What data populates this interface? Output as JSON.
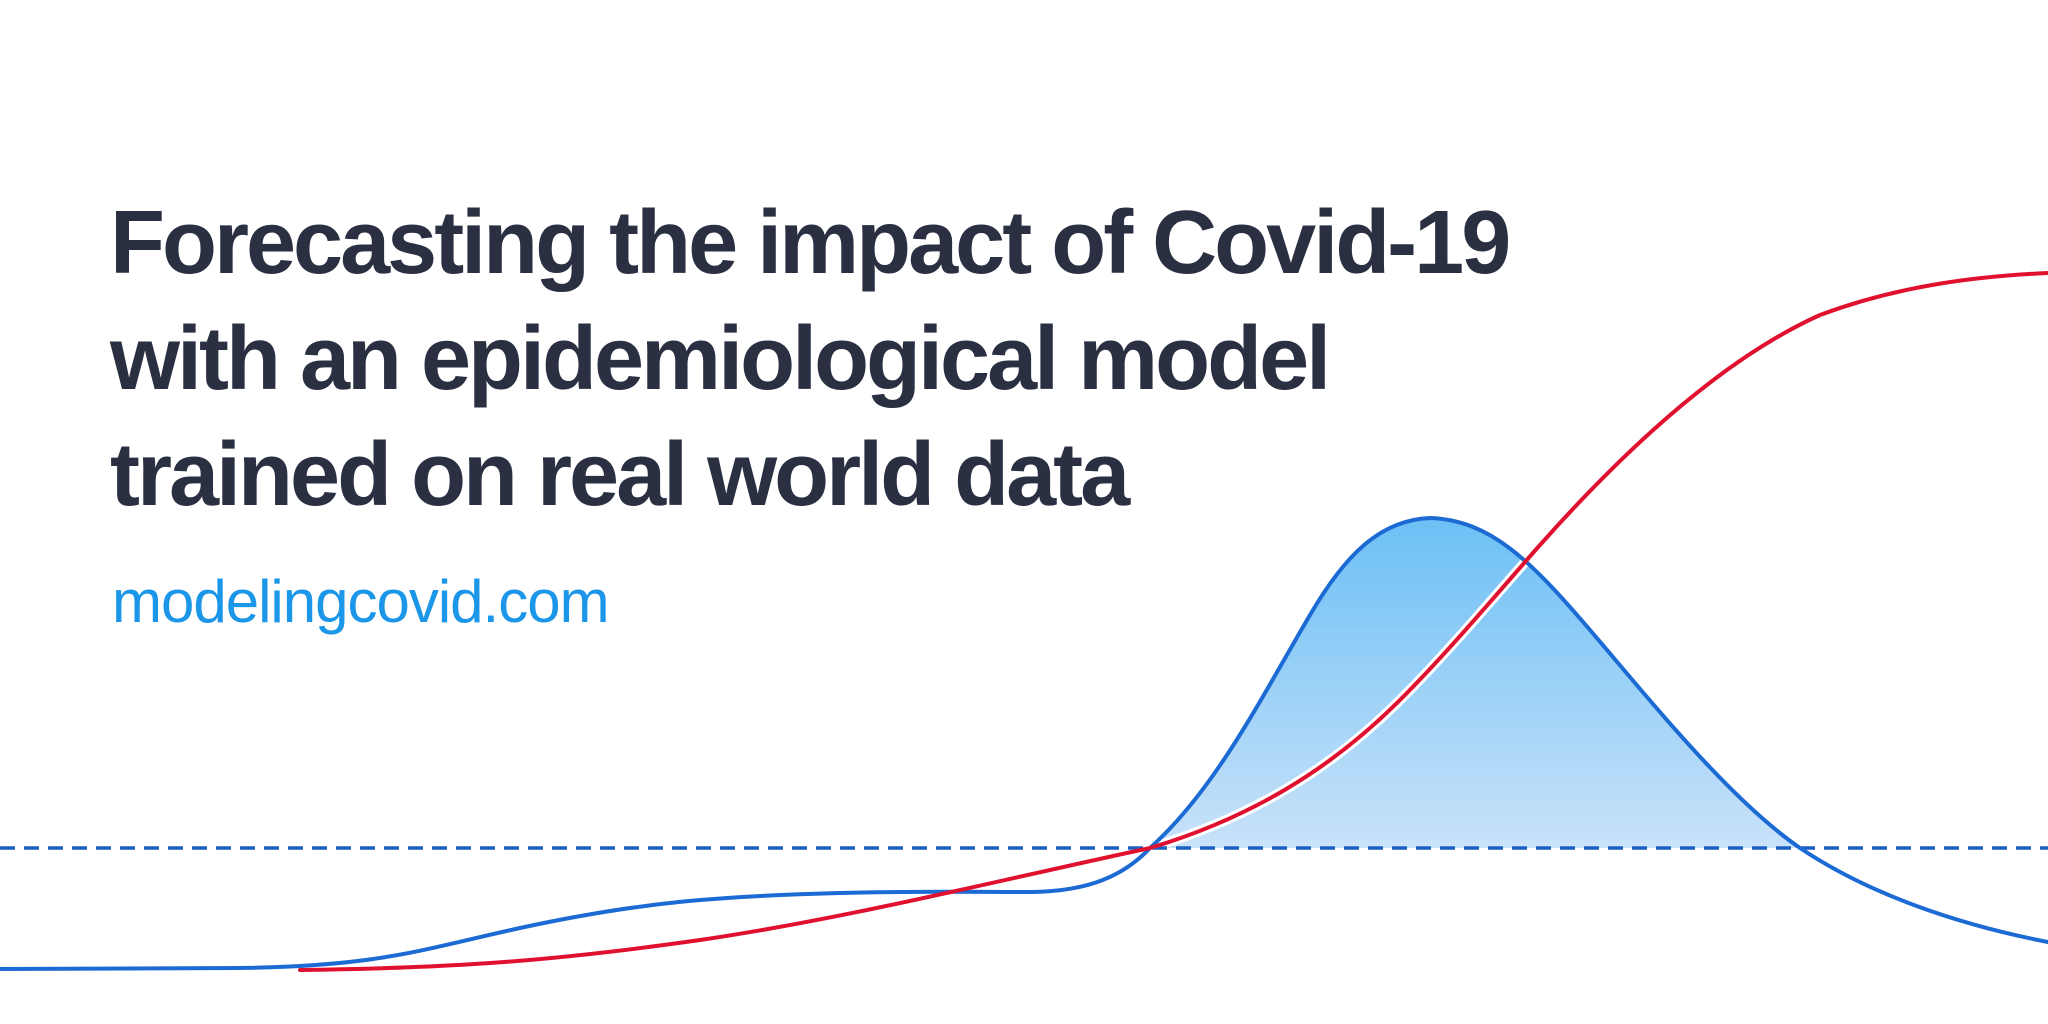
{
  "headline": {
    "line1": "Forecasting the impact of Covid-19",
    "line2": "with an epidemiological model",
    "line3": "trained on real world data"
  },
  "link": {
    "text": "modelingcovid.com"
  },
  "illustration": {
    "colors": {
      "blue_curve": "#1c6ad3",
      "red_curve": "#e0102f",
      "dashed_line": "#1c5fc4",
      "fill_top": "#6cc0f5",
      "fill_bottom": "#c9e2f9"
    }
  }
}
